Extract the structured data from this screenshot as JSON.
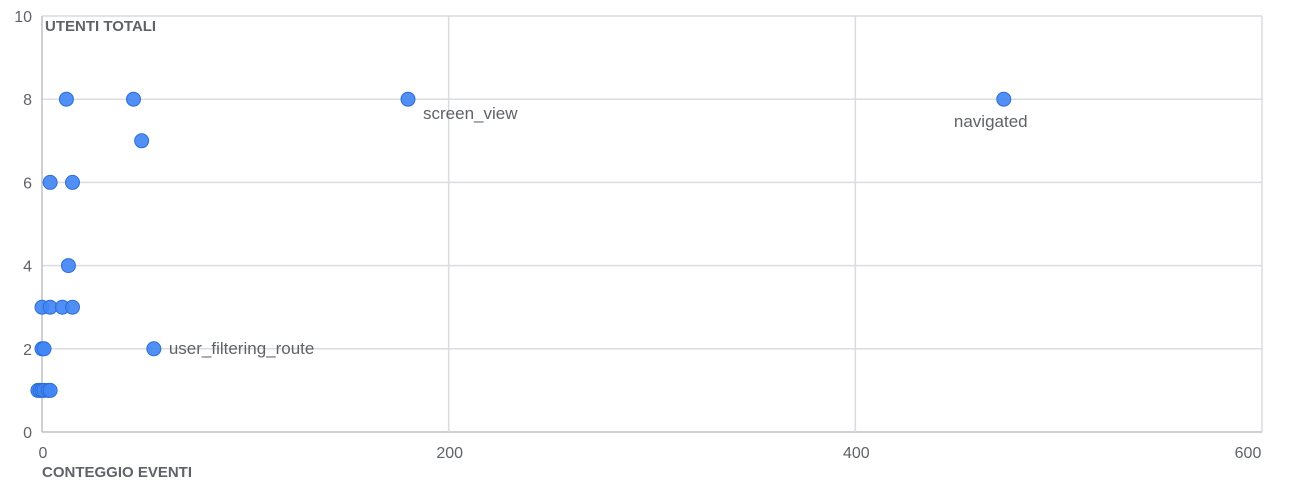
{
  "chart_data": {
    "type": "scatter",
    "xlabel": "CONTEGGIO EVENTI",
    "ylabel": "UTENTI TOTALI",
    "xlim": [
      0,
      600
    ],
    "ylim": [
      0,
      10
    ],
    "xticks": [
      0,
      200,
      400,
      600
    ],
    "yticks": [
      0,
      2,
      4,
      6,
      8,
      10
    ],
    "grid": true,
    "point_color": "#4285f4",
    "points": [
      {
        "x": 12,
        "y": 8
      },
      {
        "x": 45,
        "y": 8
      },
      {
        "x": 180,
        "y": 8,
        "label": "screen_view"
      },
      {
        "x": 473,
        "y": 8,
        "label": "navigated"
      },
      {
        "x": 49,
        "y": 7
      },
      {
        "x": 4,
        "y": 6
      },
      {
        "x": 15,
        "y": 6
      },
      {
        "x": 13,
        "y": 4
      },
      {
        "x": 0,
        "y": 3
      },
      {
        "x": 4,
        "y": 3
      },
      {
        "x": 10,
        "y": 3
      },
      {
        "x": 15,
        "y": 3
      },
      {
        "x": 0,
        "y": 2
      },
      {
        "x": 1,
        "y": 2
      },
      {
        "x": 55,
        "y": 2,
        "label": "user_filtering_route"
      },
      {
        "x": -2,
        "y": 1
      },
      {
        "x": -1,
        "y": 1
      },
      {
        "x": 0,
        "y": 1
      },
      {
        "x": 1,
        "y": 1
      },
      {
        "x": 3,
        "y": 1
      },
      {
        "x": 4,
        "y": 1
      }
    ]
  }
}
